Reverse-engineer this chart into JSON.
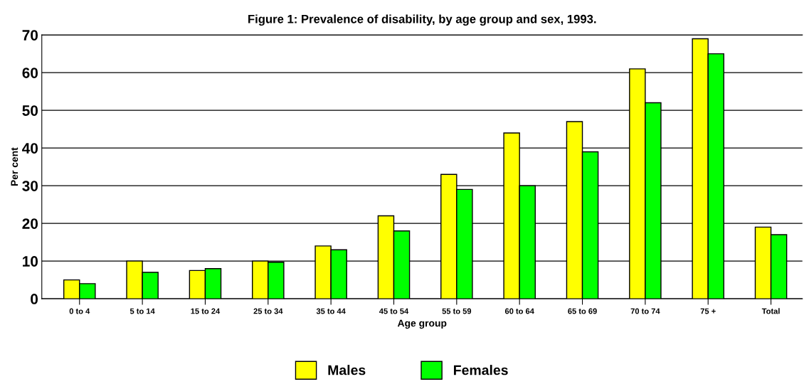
{
  "chart_data": {
    "type": "bar",
    "title": "Figure 1: Prevalence of disability, by age group and sex, 1993.",
    "xlabel": "Age group",
    "ylabel": "Per cent",
    "categories": [
      "0 to 4",
      "5 to 14",
      "15 to 24",
      "25 to 34",
      "35 to 44",
      "45 to 54",
      "55 to 59",
      "60 to 64",
      "65 to 69",
      "70 to 74",
      "75 +",
      "Total"
    ],
    "series": [
      {
        "name": "Males",
        "color": "#ffff00",
        "values": [
          5,
          10,
          7.5,
          10,
          14,
          22,
          33,
          44,
          47,
          61,
          69,
          19
        ]
      },
      {
        "name": "Females",
        "color": "#00ff00",
        "values": [
          4,
          7,
          8,
          9.7,
          13,
          18,
          29,
          30,
          39,
          52,
          65,
          17
        ]
      }
    ],
    "ylim": [
      0,
      70
    ],
    "yticks": [
      0,
      10,
      20,
      30,
      40,
      50,
      60,
      70
    ],
    "grid": "y",
    "legend": "bottom"
  }
}
